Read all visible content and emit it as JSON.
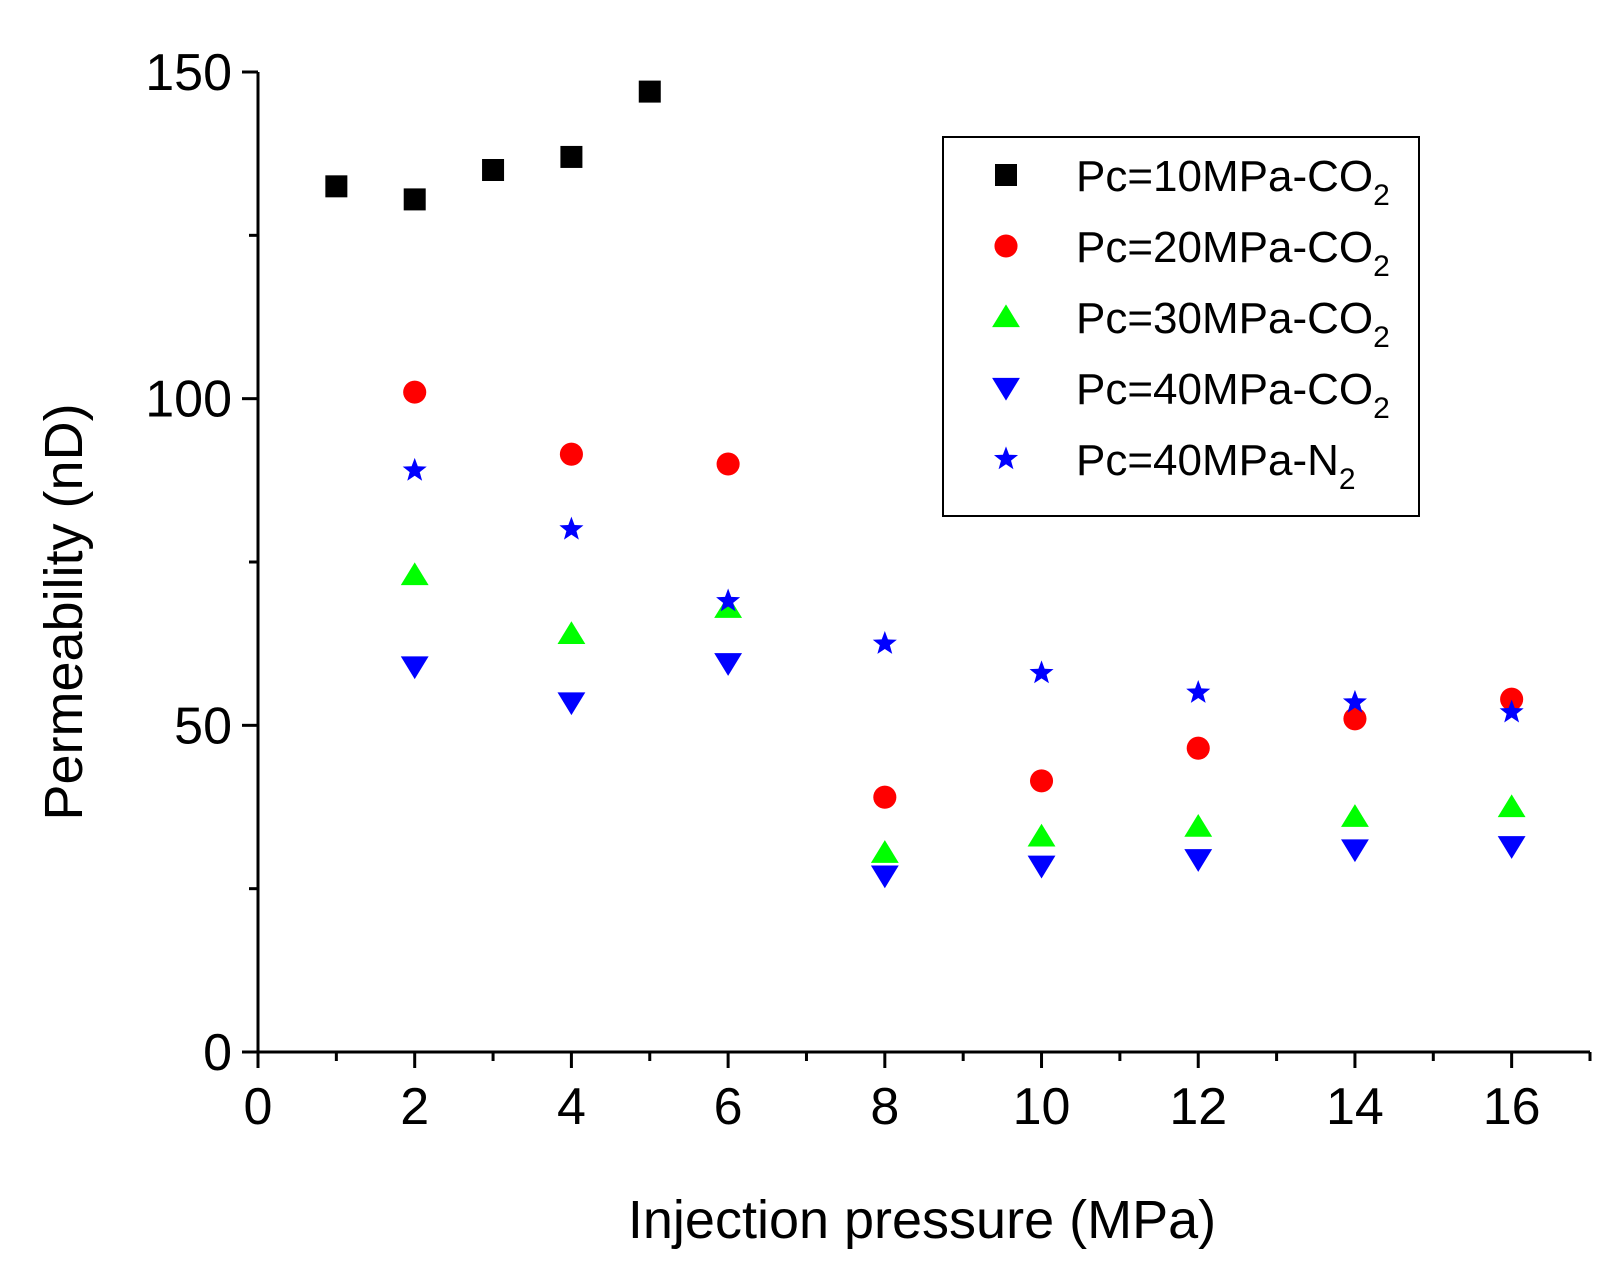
{
  "chart_data": {
    "type": "scatter",
    "title": "",
    "xlabel": "Injection pressure (MPa)",
    "ylabel": "Permeability (nD)",
    "xlim": [
      0,
      17
    ],
    "ylim": [
      0,
      150
    ],
    "xticks": [
      0,
      2,
      4,
      6,
      8,
      10,
      12,
      14,
      16
    ],
    "yticks": [
      0,
      50,
      100,
      150
    ],
    "grid": false,
    "legend_position": "top-right",
    "series": [
      {
        "name": "Pc=10MPa-CO",
        "subscript": "2",
        "marker": "square",
        "color": "#000000",
        "points": [
          [
            1,
            132.5
          ],
          [
            2,
            130.5
          ],
          [
            3,
            135
          ],
          [
            4,
            137
          ],
          [
            5,
            147
          ]
        ]
      },
      {
        "name": "Pc=20MPa-CO",
        "subscript": "2",
        "marker": "circle",
        "color": "#ff0000",
        "points": [
          [
            2,
            101
          ],
          [
            4,
            91.5
          ],
          [
            6,
            90
          ],
          [
            8,
            39
          ],
          [
            10,
            41.5
          ],
          [
            12,
            46.5
          ],
          [
            14,
            51
          ],
          [
            16,
            54
          ]
        ]
      },
      {
        "name": "Pc=30MPa-CO",
        "subscript": "2",
        "marker": "triangle-up",
        "color": "#00ff00",
        "points": [
          [
            2,
            73
          ],
          [
            4,
            64
          ],
          [
            6,
            68
          ],
          [
            8,
            30.5
          ],
          [
            10,
            33
          ],
          [
            12,
            34.5
          ],
          [
            14,
            36
          ],
          [
            16,
            37.5
          ]
        ]
      },
      {
        "name": "Pc=40MPa-CO",
        "subscript": "2",
        "marker": "triangle-down",
        "color": "#0000ff",
        "points": [
          [
            2,
            59
          ],
          [
            4,
            53.5
          ],
          [
            6,
            59.5
          ],
          [
            8,
            27
          ],
          [
            10,
            28.5
          ],
          [
            12,
            29.5
          ],
          [
            14,
            31
          ],
          [
            16,
            31.5
          ]
        ]
      },
      {
        "name": "Pc=40MPa-N",
        "subscript": "2",
        "marker": "star",
        "color": "#0000ff",
        "points": [
          [
            2,
            89
          ],
          [
            4,
            80
          ],
          [
            6,
            69
          ],
          [
            8,
            62.5
          ],
          [
            10,
            58
          ],
          [
            12,
            55
          ],
          [
            14,
            53.5
          ],
          [
            16,
            52
          ]
        ]
      }
    ]
  }
}
